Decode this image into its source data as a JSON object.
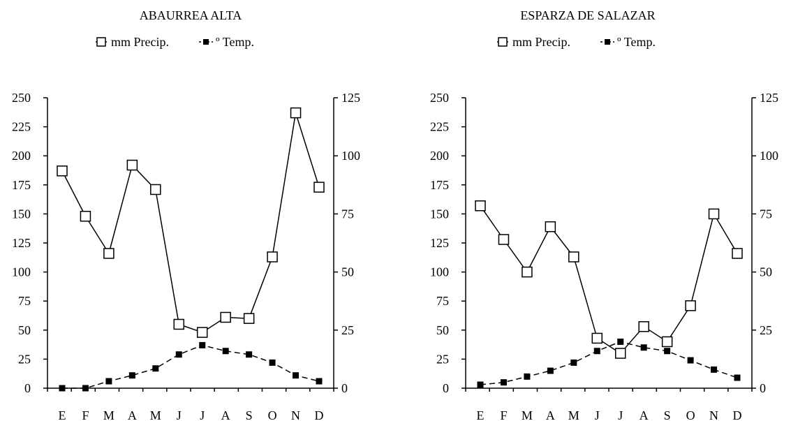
{
  "chart_data": [
    {
      "type": "line",
      "title": "ABAURREA ALTA",
      "categories": [
        "E",
        "F",
        "M",
        "A",
        "M",
        "J",
        "J",
        "A",
        "S",
        "O",
        "N",
        "D"
      ],
      "left_axis": {
        "ylim": [
          0,
          250
        ],
        "ticks": [
          "0",
          "25",
          "50",
          "75",
          "100",
          "125",
          "150",
          "175",
          "200",
          "225",
          "250"
        ]
      },
      "right_axis": {
        "ylim": [
          0,
          125
        ],
        "ticks": [
          "0",
          "25",
          "50",
          "75",
          "100",
          "125"
        ]
      },
      "legend": {
        "placement": "top"
      },
      "series": [
        {
          "name": "mm Precip.",
          "axis": "left",
          "marker": "open-square",
          "line": "solid",
          "values": [
            187,
            148,
            116,
            192,
            171,
            55,
            48,
            61,
            60,
            113,
            237,
            173
          ]
        },
        {
          "name": "º Temp.",
          "axis": "right",
          "marker": "filled-square",
          "line": "dashed",
          "values": [
            0,
            0,
            3,
            5.5,
            8.5,
            14.5,
            18.5,
            16,
            14.5,
            11,
            5.5,
            3
          ]
        }
      ]
    },
    {
      "type": "line",
      "title": "ESPARZA DE SALAZAR",
      "categories": [
        "E",
        "F",
        "M",
        "A",
        "M",
        "J",
        "J",
        "A",
        "S",
        "O",
        "N",
        "D"
      ],
      "left_axis": {
        "ylim": [
          0,
          250
        ],
        "ticks": [
          "0",
          "25",
          "50",
          "75",
          "100",
          "125",
          "150",
          "175",
          "200",
          "225",
          "250"
        ]
      },
      "right_axis": {
        "ylim": [
          0,
          125
        ],
        "ticks": [
          "0",
          "25",
          "50",
          "75",
          "100",
          "125"
        ]
      },
      "legend": {
        "placement": "top"
      },
      "series": [
        {
          "name": "mm Precip.",
          "axis": "left",
          "marker": "open-square",
          "line": "solid",
          "values": [
            157,
            128,
            100,
            139,
            113,
            43,
            30,
            53,
            40,
            71,
            150,
            116
          ]
        },
        {
          "name": "º Temp.",
          "axis": "right",
          "marker": "filled-square",
          "line": "dashed",
          "values": [
            1.5,
            2.5,
            5,
            7.5,
            11,
            16,
            20,
            17.5,
            16,
            12,
            8,
            4.5
          ]
        }
      ]
    }
  ],
  "colors": {
    "ink": "#000000",
    "background": "#ffffff"
  }
}
